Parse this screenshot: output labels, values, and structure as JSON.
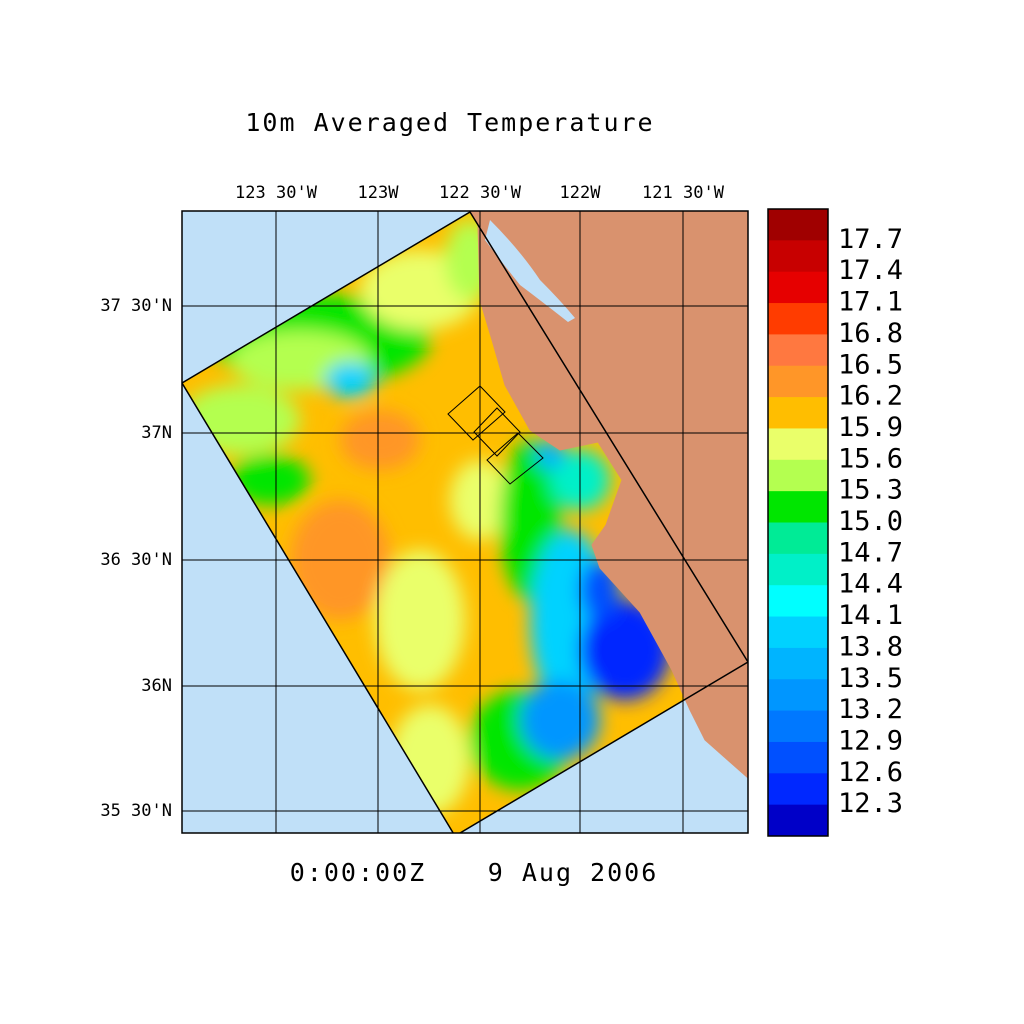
{
  "title": "10m Averaged Temperature",
  "lon_labels": [
    "123 30'W",
    "123W",
    "122 30'W",
    "122W",
    "121 30'W"
  ],
  "lat_labels": [
    "37 30'N",
    "37N",
    "36 30'N",
    "36N",
    "35 30'N"
  ],
  "colorbar": {
    "labels": [
      "17.7",
      "17.4",
      "17.1",
      "16.8",
      "16.5",
      "16.2",
      "15.9",
      "15.6",
      "15.3",
      "15.0",
      "14.7",
      "14.4",
      "14.1",
      "13.8",
      "13.5",
      "13.2",
      "12.9",
      "12.6",
      "12.3"
    ],
    "colors": [
      "#a00000",
      "#c80000",
      "#e60000",
      "#ff3c00",
      "#ff7840",
      "#ff9628",
      "#ffbe00",
      "#eaff6a",
      "#b4ff50",
      "#00e600",
      "#00eb96",
      "#00f0c8",
      "#00ffff",
      "#00d2ff",
      "#00b4ff",
      "#0096ff",
      "#0078ff",
      "#0050ff",
      "#0028ff",
      "#0000c8"
    ]
  },
  "time": "0:00:00Z",
  "date": "9 Aug 2006"
}
